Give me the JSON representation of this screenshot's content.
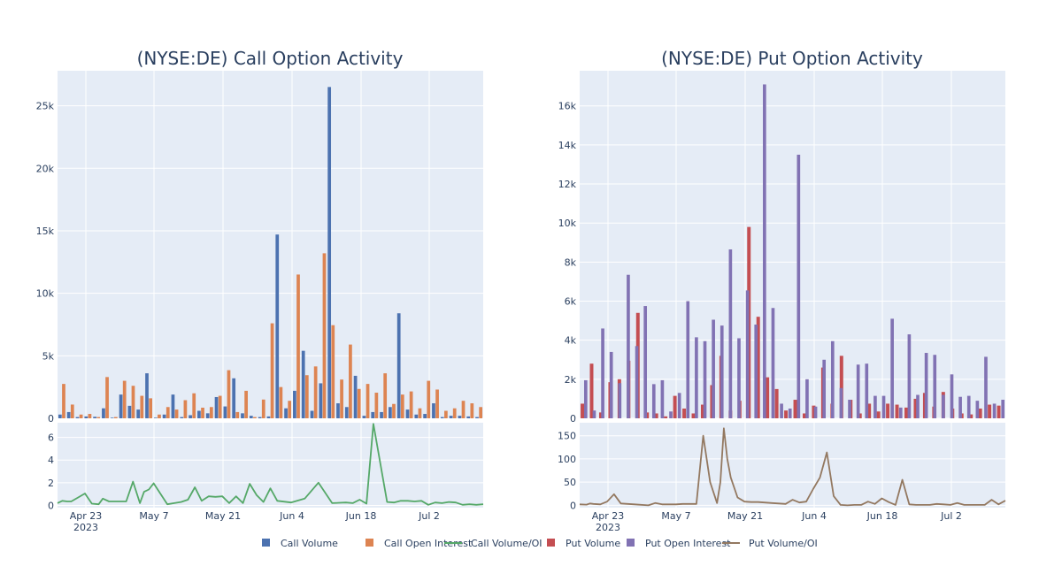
{
  "colors": {
    "plot_bg": "#E5ECF6",
    "grid": "#ffffff",
    "call_volume": "#4C72B0",
    "call_oi": "#DD8452",
    "call_ratio": "#55A868",
    "put_volume": "#C44E52",
    "put_oi": "#8172B3",
    "put_ratio": "#937860"
  },
  "legend": [
    {
      "label": "Call Volume",
      "kind": "bar",
      "color": "#4C72B0"
    },
    {
      "label": "Call Open Interest",
      "kind": "bar",
      "color": "#DD8452"
    },
    {
      "label": "Call Volume/OI",
      "kind": "line",
      "color": "#55A868"
    },
    {
      "label": "Put Volume",
      "kind": "bar",
      "color": "#C44E52"
    },
    {
      "label": "Put Open Interest",
      "kind": "bar",
      "color": "#8172B3"
    },
    {
      "label": "Put Volume/OI",
      "kind": "line",
      "color": "#937860"
    }
  ],
  "chart_data": [
    {
      "type": "bar",
      "title": "(NYSE:DE) Call Option Activity",
      "x_ticks": [
        [
          "Apr 23",
          "2023"
        ],
        [
          "May 7"
        ],
        [
          "May 21"
        ],
        [
          "Jun 4"
        ],
        [
          "Jun 18"
        ],
        [
          "Jul 2"
        ]
      ],
      "tick_index": [
        2,
        12,
        22,
        32,
        42,
        52
      ],
      "y_ticks": [
        "0",
        "5k",
        "10k",
        "15k",
        "20k",
        "25k"
      ],
      "y_tick_values": [
        0,
        5000,
        10000,
        15000,
        20000,
        25000
      ],
      "ylim": [
        0,
        27800
      ],
      "series": [
        {
          "name": "Call Volume",
          "values": [
            300,
            500,
            100,
            150,
            120,
            800,
            50,
            1900,
            1000,
            700,
            3600,
            50,
            300,
            1900,
            100,
            250,
            600,
            400,
            1700,
            950,
            3200,
            400,
            200,
            100,
            150,
            14700,
            800,
            2200,
            5400,
            600,
            2800,
            26500,
            1200,
            900,
            3400,
            200,
            500,
            500,
            900,
            8400,
            700,
            300,
            350,
            1200,
            100,
            200,
            200,
            150,
            100
          ]
        },
        {
          "name": "Call Open Interest",
          "values": [
            2750,
            1100,
            300,
            350,
            100,
            3300,
            100,
            3000,
            2600,
            1800,
            1600,
            300,
            900,
            700,
            1450,
            2000,
            850,
            900,
            1800,
            3850,
            500,
            2200,
            100,
            1500,
            7600,
            2500,
            1400,
            11500,
            3450,
            4150,
            13200,
            7450,
            3100,
            5900,
            2350,
            2750,
            2050,
            3600,
            1150,
            1900,
            2150,
            800,
            3000,
            2300,
            600,
            800,
            1400,
            1200,
            900
          ]
        }
      ],
      "ratio": {
        "name": "Call Volume/OI",
        "yticks": [
          "0",
          "2",
          "4",
          "6"
        ],
        "ytick_values": [
          0,
          2,
          4,
          6
        ],
        "ylim": [
          -0.2,
          7.3
        ],
        "x": [
          0,
          0.7,
          1.4,
          2,
          3,
          4,
          5,
          6,
          6.6,
          7.5,
          8,
          10,
          11,
          12,
          12.6,
          13.3,
          14,
          16,
          17,
          18,
          19,
          20,
          21,
          22,
          23,
          24,
          25,
          26,
          27,
          28,
          29,
          30,
          31,
          32,
          34,
          36,
          38,
          40,
          42,
          43,
          44,
          45,
          46,
          48,
          49,
          50,
          51,
          52,
          53,
          54,
          55,
          56,
          57,
          58,
          59,
          60,
          61,
          62
        ],
        "values": [
          0.2,
          0.4,
          0.35,
          0.35,
          0.7,
          1.05,
          0.15,
          0.1,
          0.6,
          0.35,
          0.35,
          0.35,
          2.1,
          0.2,
          1.2,
          1.4,
          1.95,
          0.1,
          0.2,
          0.3,
          0.5,
          1.6,
          0.4,
          0.8,
          0.75,
          0.8,
          0.2,
          0.8,
          0.2,
          1.9,
          0.9,
          0.3,
          1.5,
          0.4,
          0.25,
          0.6,
          2.0,
          0.2,
          0.25,
          0.2,
          0.5,
          0.15,
          7.2,
          0.3,
          0.25,
          0.4,
          0.4,
          0.35,
          0.4,
          0.05,
          0.25,
          0.2,
          0.3,
          0.25,
          0.05,
          0.1,
          0.05,
          0.1
        ]
      }
    },
    {
      "type": "bar",
      "title": "(NYSE:DE) Put Option Activity",
      "x_ticks": [
        [
          "Apr 23",
          "2023"
        ],
        [
          "May 7"
        ],
        [
          "May 21"
        ],
        [
          "Jun 4"
        ],
        [
          "Jun 18"
        ],
        [
          "Jul 2"
        ]
      ],
      "tick_index": [
        2,
        12,
        22,
        32,
        42,
        52
      ],
      "y_ticks": [
        "0",
        "2k",
        "4k",
        "6k",
        "8k",
        "10k",
        "12k",
        "14k",
        "16k"
      ],
      "y_tick_values": [
        0,
        2000,
        4000,
        6000,
        8000,
        10000,
        12000,
        14000,
        16000
      ],
      "ylim": [
        0,
        17800
      ],
      "series": [
        {
          "name": "Put Volume",
          "values": [
            750,
            2800,
            300,
            1850,
            2000,
            2950,
            5400,
            300,
            250,
            100,
            1150,
            500,
            250,
            700,
            1700,
            3200,
            400,
            900,
            9800,
            5200,
            2100,
            1500,
            400,
            950,
            250,
            650,
            2600,
            750,
            3200,
            950,
            250,
            750,
            350,
            750,
            700,
            550,
            1000,
            1300,
            600,
            1350,
            500,
            250,
            200,
            500,
            700,
            650
          ]
        },
        {
          "name": "Put Open Interest",
          "values": [
            1950,
            400,
            4600,
            3400,
            1800,
            7350,
            3700,
            5750,
            1750,
            1950,
            350,
            1300,
            6000,
            4150,
            3950,
            5050,
            4750,
            8650,
            4100,
            6550,
            4800,
            17100,
            5650,
            750,
            500,
            13500,
            2000,
            600,
            3000,
            3950,
            1550,
            950,
            2750,
            2800,
            1150,
            1150,
            5100,
            550,
            4300,
            1200,
            3350,
            3250,
            1200,
            2250,
            1100,
            1150,
            900,
            3150,
            750,
            950
          ]
        }
      ],
      "ratio": {
        "name": "Put Volume/OI",
        "yticks": [
          "0",
          "50",
          "100",
          "150"
        ],
        "ytick_values": [
          0,
          50,
          100,
          150
        ],
        "ylim": [
          -5,
          178
        ],
        "x": [
          0,
          1,
          1.5,
          2,
          3,
          4,
          5,
          6,
          7,
          8,
          10,
          11,
          12,
          14,
          15,
          16,
          17,
          18,
          19,
          20,
          20.5,
          21,
          21.5,
          22,
          23,
          24,
          25,
          26,
          28,
          30,
          31,
          32,
          33,
          34,
          35,
          36,
          37,
          38,
          39,
          40,
          41,
          42,
          43,
          44,
          45,
          46,
          47,
          48,
          49,
          50,
          51,
          52,
          53,
          54,
          55,
          56,
          57,
          58,
          59,
          60,
          61,
          62
        ],
        "values": [
          2,
          1.5,
          4,
          3,
          2,
          8,
          24,
          4,
          3,
          2,
          0,
          5,
          2,
          2,
          3,
          3,
          3,
          150,
          50,
          5,
          50,
          166,
          100,
          60,
          17,
          8,
          7,
          7,
          5,
          3,
          12,
          6,
          8,
          35,
          60,
          114,
          20,
          1,
          0,
          1,
          1,
          8,
          3,
          15,
          7,
          1,
          55,
          2,
          1,
          1,
          1,
          3,
          2,
          1,
          5,
          1,
          1,
          1,
          1,
          12,
          2,
          10
        ]
      }
    }
  ]
}
